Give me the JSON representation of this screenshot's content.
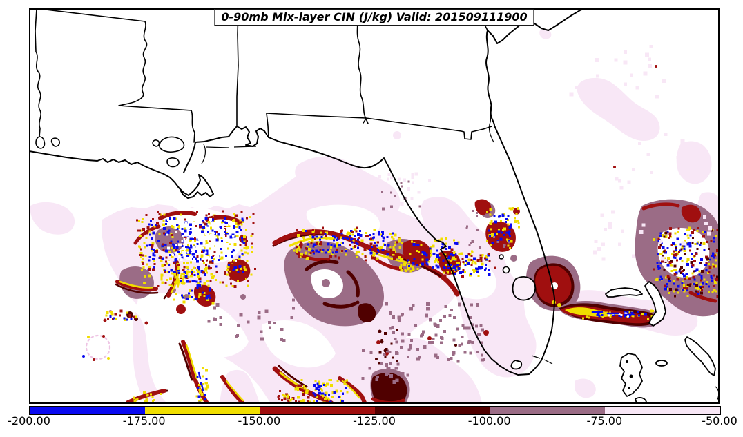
{
  "chart_data": {
    "type": "heatmap",
    "title": "0-90mb Mix-layer CIN (J/kg) Valid: 201509111900",
    "variable": "0-90mb Mix-layer CIN",
    "units": "J/kg",
    "valid_time": "201509111900",
    "region": "Southeastern United States, Gulf of Mexico coast and Florida with Bahamas; state borders for Louisiana, Mississippi, Alabama, Georgia and Florida",
    "legend_position": "horizontal colorbar at bottom",
    "colorbar": {
      "orientation": "horizontal",
      "tick_labels": [
        "-200.00",
        "-175.00",
        "-150.00",
        "-125.00",
        "-100.00",
        "-75.00",
        "-50.00"
      ],
      "tick_values": [
        -200,
        -175,
        -150,
        -125,
        -100,
        -75,
        -50
      ],
      "segments": [
        {
          "range": [
            -200,
            -175
          ],
          "color": "#0909f0",
          "name": "blue"
        },
        {
          "range": [
            -175,
            -150
          ],
          "color": "#f0de00",
          "name": "yellow"
        },
        {
          "range": [
            -150,
            -125
          ],
          "color": "#a00f0f",
          "name": "firebrick"
        },
        {
          "range": [
            -125,
            -100
          ],
          "color": "#500000",
          "name": "dark-maroon"
        },
        {
          "range": [
            -100,
            -75
          ],
          "color": "#9b6c86",
          "name": "mauve"
        },
        {
          "range": [
            -75,
            -50
          ],
          "color": "#f8e7f6",
          "name": "pale-pink"
        }
      ]
    },
    "features": [
      "Strong CIN cells (blue/yellow cores < -150 J/kg) clustered offshore of Louisiana",
      "Arc-shaped strong CIN bands across the north-central Gulf of Mexico",
      "Mauve (-100 to -75) blob in the central Gulf with dark-maroon cores",
      "Intense cell east of Lake Okeechobee with east-west streak toward Grand Bahama",
      "Speckled strong-CIN cluster near the map's right edge over the Atlantic",
      "Curved CIN bands along the bottom edge of the domain",
      "Weak pale-pink CIN (-75 to -50) spread over the Gulf, Florida peninsula and western Atlantic",
      "White areas indicate CIN weaker than -50 J/kg"
    ]
  },
  "palette": {
    "blue": "#0909f0",
    "yellow": "#f0de00",
    "red": "#a00f0f",
    "maroon": "#500000",
    "mauve": "#9b6c86",
    "palepink": "#f8e7f6",
    "white": "#ffffff"
  },
  "speckle_fields": [
    [
      200,
      308,
      165,
      105,
      210,
      3,
      "yellow"
    ],
    [
      212,
      314,
      140,
      80,
      170,
      3,
      "blue"
    ],
    [
      196,
      304,
      172,
      112,
      110,
      3,
      "red"
    ],
    [
      240,
      316,
      100,
      62,
      80,
      3,
      "white"
    ],
    [
      250,
      386,
      58,
      52,
      46,
      3,
      "yellow"
    ],
    [
      256,
      392,
      48,
      44,
      30,
      3,
      "blue"
    ],
    [
      422,
      330,
      158,
      44,
      100,
      3,
      "yellow"
    ],
    [
      440,
      333,
      128,
      34,
      80,
      3,
      "blue"
    ],
    [
      428,
      328,
      150,
      48,
      55,
      3,
      "red"
    ],
    [
      576,
      344,
      92,
      48,
      62,
      3,
      "yellow"
    ],
    [
      586,
      350,
      78,
      40,
      48,
      3,
      "blue"
    ],
    [
      640,
      362,
      72,
      36,
      40,
      3,
      "yellow"
    ],
    [
      648,
      366,
      60,
      30,
      30,
      3,
      "blue"
    ],
    [
      636,
      358,
      80,
      40,
      26,
      3,
      "red"
    ],
    [
      700,
      300,
      50,
      58,
      36,
      3,
      "yellow"
    ],
    [
      706,
      306,
      40,
      48,
      26,
      3,
      "blue"
    ],
    [
      944,
      328,
      96,
      100,
      100,
      3,
      "yellow"
    ],
    [
      950,
      334,
      86,
      90,
      95,
      3,
      "blue"
    ],
    [
      944,
      328,
      96,
      100,
      60,
      3,
      "red"
    ],
    [
      948,
      332,
      92,
      96,
      42,
      3,
      "maroon"
    ],
    [
      428,
      546,
      74,
      36,
      46,
      3,
      "yellow"
    ],
    [
      444,
      554,
      56,
      28,
      26,
      3,
      "blue"
    ],
    [
      282,
      528,
      18,
      56,
      24,
      3,
      "yellow"
    ],
    [
      284,
      540,
      14,
      44,
      10,
      3,
      "blue"
    ],
    [
      186,
      566,
      52,
      16,
      16,
      3,
      "yellow"
    ],
    [
      400,
      555,
      48,
      30,
      26,
      3,
      "red"
    ],
    [
      408,
      560,
      38,
      24,
      16,
      3,
      "yellow"
    ],
    [
      556,
      436,
      140,
      86,
      60,
      4,
      "mauve"
    ],
    [
      300,
      430,
      130,
      62,
      26,
      4,
      "mauve"
    ],
    [
      600,
      460,
      110,
      60,
      30,
      4,
      "mauve"
    ],
    [
      520,
      505,
      72,
      48,
      26,
      4,
      "mauve"
    ],
    [
      856,
      190,
      170,
      190,
      40,
      5,
      "palepink"
    ],
    [
      820,
      60,
      140,
      80,
      18,
      5,
      "palepink"
    ],
    [
      545,
      248,
      76,
      62,
      24,
      4,
      "palepink"
    ],
    [
      552,
      258,
      60,
      46,
      10,
      3,
      "mauve"
    ],
    [
      540,
      474,
      40,
      56,
      10,
      3,
      "maroon"
    ],
    [
      146,
      448,
      56,
      14,
      10,
      3,
      "red"
    ],
    [
      150,
      450,
      48,
      12,
      8,
      3,
      "yellow"
    ],
    [
      154,
      452,
      40,
      10,
      5,
      3,
      "blue"
    ],
    [
      672,
      300,
      70,
      60,
      16,
      3,
      "mauve"
    ],
    [
      840,
      448,
      110,
      12,
      30,
      3,
      "yellow"
    ],
    [
      856,
      450,
      84,
      8,
      20,
      3,
      "blue"
    ],
    [
      872,
      452,
      46,
      5,
      8,
      3,
      "white"
    ]
  ]
}
